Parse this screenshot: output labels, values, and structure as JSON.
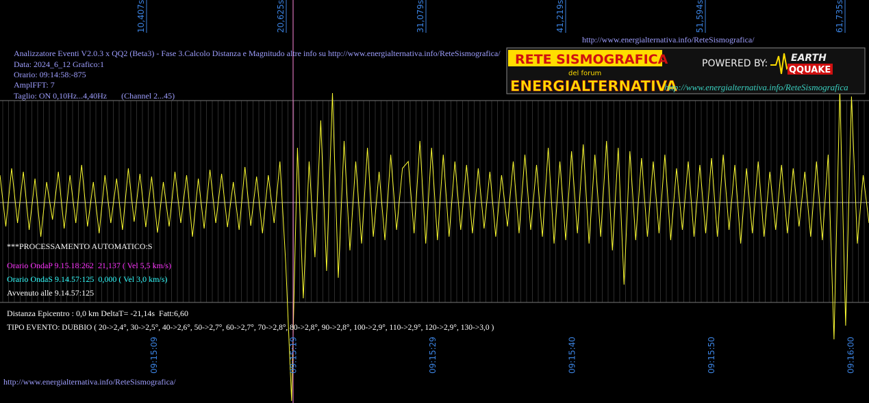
{
  "header": {
    "url": "http://www.energialternativa.info/ReteSismografica/"
  },
  "info": [
    "Analizzatore Eventi V2.0.3 x QQ2 (Beta3) - Fase 3.Calcolo Distanza e Magnitudo altre info su http://www.energialternativa.info/ReteSismografica/",
    "Data: 2024_6_12 Grafico:1",
    "Orario: 09:14:58:-875",
    "AmplFFT: 7",
    "Taglio: ON 0,10Hz...4,40Hz       (Channel 2...45)"
  ],
  "logo": {
    "line1": "RETE SISMOGRAFICA",
    "line2": "del forum",
    "line3": "ENERGIALTERNATIVA",
    "powered": "POWERED BY:",
    "brand1": "EARTH",
    "brand2": "QQUAKE",
    "url": "http://www.energialternativa.info/ReteSismografica"
  },
  "top_labels": [
    "10,407s",
    "20,625s",
    "31,079s",
    "41,219s",
    "51,594s",
    "61,735s"
  ],
  "bottom_labels": [
    "09:15:09",
    "09:15:19",
    "09:15:29",
    "09:15:40",
    "09:15:50",
    "09:16:00"
  ],
  "processing": {
    "title": "***PROCESSAMENTO AUTOMATICO:S",
    "onda_p": "Orario OndaP 9.15.18:262  21,137 ( Vel 5,5 km/s)",
    "onda_s": "Orario OndaS 9.14.57:125  0,000 ( Vel 3,0 km/s)",
    "avvenuto": "Avvenuto alle 9.14.57:125",
    "distanza": "Distanza Epicentro : 0,0 km DeltaT= -21,14s  Fatt:6,60",
    "tipo": "TIPO EVENTO: DUBBIO ( 20->2,4°, 30->2,5°, 40->2,6°, 50->2,7°, 60->2,7°, 70->2,8°, 80->2,8°, 90->2,8°, 100->2,9°, 110->2,9°, 120->2,9°, 130->3,0 )"
  },
  "footer": {
    "url": "http://www.energialternativa.info/ReteSismografica/"
  },
  "trace": {
    "color": "#ffff33",
    "values": [
      40,
      -35,
      50,
      -30,
      45,
      -40,
      35,
      -50,
      30,
      -25,
      45,
      -38,
      40,
      -30,
      55,
      -35,
      30,
      -45,
      40,
      -30,
      35,
      -40,
      50,
      -28,
      42,
      -36,
      38,
      -44,
      30,
      -35,
      45,
      -30,
      40,
      -50,
      35,
      -38,
      48,
      -30,
      42,
      -36,
      30,
      -40,
      52,
      -34,
      38,
      -45,
      40,
      -30,
      60,
      -90,
      -290,
      80,
      -140,
      60,
      -80,
      120,
      -100,
      160,
      -110,
      90,
      -70,
      60,
      -60,
      80,
      -50,
      45,
      -55,
      70,
      -40,
      50,
      60,
      -45,
      90,
      -60,
      80,
      -55,
      70,
      -50,
      60,
      -40,
      55,
      -45,
      50,
      -38,
      45,
      -50,
      40,
      -35,
      60,
      -45,
      70,
      -40,
      55,
      -50,
      80,
      -60,
      60,
      -55,
      75,
      -45,
      85,
      -60,
      70,
      -50,
      90,
      -70,
      80,
      -120,
      75,
      -55,
      65,
      -50,
      60,
      -45,
      70,
      -55,
      50,
      -40,
      60,
      -50,
      55,
      -45,
      65,
      -50,
      70,
      -40,
      55,
      -60,
      50,
      -45,
      60,
      -50,
      45,
      -40,
      55,
      -45,
      50,
      -35,
      45,
      -50,
      60,
      -55,
      70,
      -200,
      165,
      -180,
      155,
      -60,
      40,
      -30
    ]
  }
}
